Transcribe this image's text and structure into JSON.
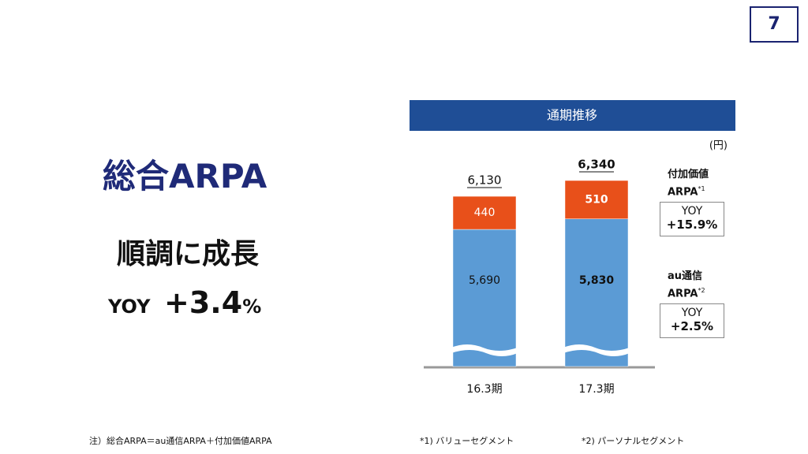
{
  "page_number": "7",
  "headline": "総合ARPA",
  "subheadline": "順調に成長",
  "yoy_prefix": "YOY",
  "yoy_value": "+3.4",
  "yoy_unit": "%",
  "footnotes": [
    "注）総合ARPA＝au通信ARPA＋付加価値ARPA",
    "*1) バリューセグメント",
    "*2) パーソナルセグメント"
  ],
  "chart_data": {
    "type": "stacked-bar",
    "title": "通期推移",
    "unit": "(円)",
    "categories": [
      "16.3期",
      "17.3期"
    ],
    "series": [
      {
        "name": "au通信ARPA",
        "note": "*2",
        "color": "#5b9bd5",
        "values": [
          5690,
          5830
        ],
        "value_labels": [
          "5,690",
          "5,830"
        ],
        "yoy_label": "YOY",
        "yoy": "+2.5%"
      },
      {
        "name": "付加価値ARPA",
        "note": "*1",
        "color": "#e8501a",
        "values": [
          440,
          510
        ],
        "value_labels": [
          "440",
          "510"
        ],
        "yoy_label": "YOY",
        "yoy": "+15.9%"
      }
    ],
    "totals": {
      "values": [
        6130,
        6340
      ],
      "value_labels": [
        "6,130",
        "6,340"
      ]
    }
  }
}
